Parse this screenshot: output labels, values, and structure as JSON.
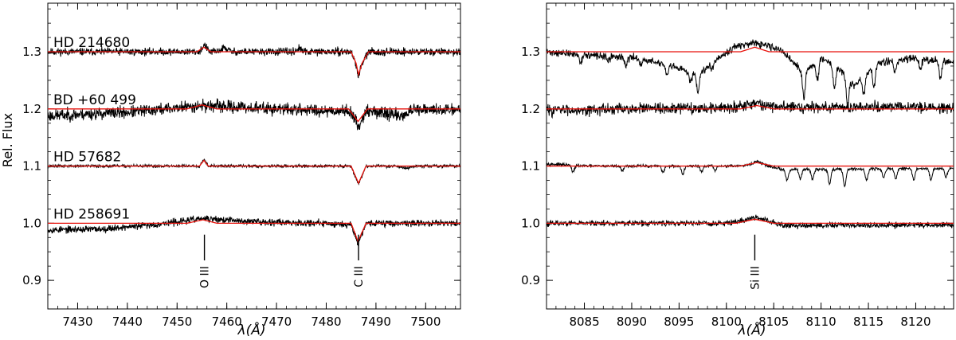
{
  "figure": {
    "ylabel": "Rel. Flux",
    "xlabel": "λ(Å)"
  },
  "chart_data": [
    {
      "type": "line",
      "panel": "left",
      "xlabel": "λ(Å)",
      "ylabel": "Rel. Flux",
      "xlim": [
        7424,
        7507
      ],
      "ylim": [
        0.85,
        1.385
      ],
      "xticks": [
        7430,
        7440,
        7450,
        7460,
        7470,
        7480,
        7490,
        7500
      ],
      "yticks": [
        0.9,
        1.0,
        1.1,
        1.2,
        1.3
      ],
      "grid": false,
      "stars": [
        {
          "label": "HD 214680",
          "offset": 0.3,
          "noise": 0.0045,
          "seed": 11,
          "observed": [
            [
              7424,
              0.0
            ],
            [
              7454.5,
              0.0
            ],
            [
              7455.5,
              0.012
            ],
            [
              7456.5,
              0.0
            ],
            [
              7458,
              0.0
            ],
            [
              7459.5,
              0.007
            ],
            [
              7461,
              0.0
            ],
            [
              7473.5,
              0.0
            ],
            [
              7474.5,
              0.006
            ],
            [
              7475.5,
              0.0
            ],
            [
              7485,
              0.0
            ],
            [
              7486,
              -0.022
            ],
            [
              7486.5,
              -0.045
            ],
            [
              7487,
              -0.025
            ],
            [
              7488.5,
              0.0
            ],
            [
              7507,
              0.0
            ]
          ],
          "model": [
            [
              7424,
              0.0
            ],
            [
              7454,
              0.0
            ],
            [
              7455.4,
              0.008
            ],
            [
              7456.8,
              0.0
            ],
            [
              7485,
              0.0
            ],
            [
              7486,
              -0.02
            ],
            [
              7486.5,
              -0.04
            ],
            [
              7487.2,
              -0.02
            ],
            [
              7488.5,
              0.0
            ],
            [
              7507,
              0.0
            ]
          ]
        },
        {
          "label": "BD +60 499",
          "offset": 0.2,
          "noise": 0.0075,
          "seed": 23,
          "observed": [
            [
              7424,
              -0.012
            ],
            [
              7440,
              -0.006
            ],
            [
              7455,
              0.006
            ],
            [
              7470,
              0.0
            ],
            [
              7485,
              -0.004
            ],
            [
              7486.4,
              -0.032
            ],
            [
              7488,
              -0.003
            ],
            [
              7495.5,
              -0.012
            ],
            [
              7497,
              -0.003
            ],
            [
              7507,
              0.0
            ]
          ],
          "model": [
            [
              7424,
              0.0
            ],
            [
              7452,
              0.0
            ],
            [
              7455,
              0.007
            ],
            [
              7458,
              0.0
            ],
            [
              7484.5,
              0.0
            ],
            [
              7486.4,
              -0.022
            ],
            [
              7488.3,
              0.0
            ],
            [
              7507,
              0.0
            ]
          ]
        },
        {
          "label": "HD 57682",
          "offset": 0.1,
          "noise": 0.0018,
          "seed": 37,
          "observed": [
            [
              7424,
              0.0
            ],
            [
              7454.5,
              0.0
            ],
            [
              7455.4,
              0.012
            ],
            [
              7456.3,
              0.0
            ],
            [
              7485,
              0.0
            ],
            [
              7486.5,
              -0.032
            ],
            [
              7488,
              0.0
            ],
            [
              7494,
              0.0
            ],
            [
              7496,
              -0.004
            ],
            [
              7498,
              0.0
            ],
            [
              7507,
              0.0
            ]
          ],
          "model": [
            [
              7424,
              0.0
            ],
            [
              7454.5,
              0.0
            ],
            [
              7455.4,
              0.01
            ],
            [
              7456.3,
              0.0
            ],
            [
              7485,
              0.0
            ],
            [
              7486.5,
              -0.03
            ],
            [
              7488,
              0.0
            ],
            [
              7507,
              0.0
            ]
          ]
        },
        {
          "label": "HD 258691",
          "offset": 0.0,
          "noise": 0.0042,
          "seed": 53,
          "observed": [
            [
              7424,
              -0.012
            ],
            [
              7435,
              -0.01
            ],
            [
              7445,
              -0.003
            ],
            [
              7455,
              0.008
            ],
            [
              7465,
              0.003
            ],
            [
              7475,
              0.001
            ],
            [
              7485,
              -0.002
            ],
            [
              7486.4,
              -0.035
            ],
            [
              7488,
              0.0
            ],
            [
              7507,
              0.0
            ]
          ],
          "model": [
            [
              7424,
              0.0
            ],
            [
              7452,
              0.0
            ],
            [
              7455.2,
              0.006
            ],
            [
              7458,
              0.0
            ],
            [
              7485,
              0.0
            ],
            [
              7486.4,
              -0.032
            ],
            [
              7488,
              0.0
            ],
            [
              7507,
              0.0
            ]
          ]
        }
      ],
      "line_markers": [
        {
          "label": "O III",
          "x": 7455.5
        },
        {
          "label": "C III",
          "x": 7486.5
        }
      ]
    },
    {
      "type": "line",
      "panel": "right",
      "xlabel": "λ(Å)",
      "ylabel": "",
      "xlim": [
        8081,
        8124
      ],
      "ylim": [
        0.85,
        1.385
      ],
      "xticks": [
        8085,
        8090,
        8095,
        8100,
        8105,
        8110,
        8115,
        8120
      ],
      "yticks": [
        0.9,
        1.0,
        1.1,
        1.2,
        1.3
      ],
      "grid": false,
      "stars": [
        {
          "offset": 0.3,
          "noise": 0.0045,
          "seed": 71,
          "observed": [
            [
              8081,
              0.0
            ],
            [
              8085,
              -0.006
            ],
            [
              8090,
              -0.01
            ],
            [
              8093,
              -0.02
            ],
            [
              8097,
              -0.04
            ],
            [
              8099,
              -0.012
            ],
            [
              8101,
              0.01
            ],
            [
              8103,
              0.014
            ],
            [
              8104.5,
              0.01
            ],
            [
              8106,
              0.0
            ],
            [
              8108,
              -0.035
            ],
            [
              8110,
              -0.012
            ],
            [
              8112,
              -0.03
            ],
            [
              8113.5,
              -0.06
            ],
            [
              8116,
              -0.02
            ],
            [
              8120,
              -0.01
            ],
            [
              8124,
              -0.02
            ]
          ],
          "absorptions": [
            [
              8084.6,
              0.012
            ],
            [
              8087.5,
              0.01
            ],
            [
              8089.4,
              0.016
            ],
            [
              8091,
              0.008
            ],
            [
              8093.7,
              0.02
            ],
            [
              8096.2,
              0.015
            ],
            [
              8097,
              0.03
            ],
            [
              8098.5,
              0.01
            ],
            [
              8108.2,
              0.05
            ],
            [
              8109.6,
              0.035
            ],
            [
              8111.4,
              0.04
            ],
            [
              8112.8,
              0.05
            ],
            [
              8114.5,
              0.03
            ],
            [
              8115.6,
              0.035
            ],
            [
              8117.8,
              0.02
            ],
            [
              8120.5,
              0.02
            ],
            [
              8122.6,
              0.03
            ]
          ],
          "model": [
            [
              8081,
              0.0
            ],
            [
              8101.5,
              0.0
            ],
            [
              8103,
              0.008
            ],
            [
              8104.5,
              0.0
            ],
            [
              8124,
              0.0
            ]
          ]
        },
        {
          "offset": 0.2,
          "noise": 0.007,
          "seed": 83,
          "observed": [
            [
              8081,
              -0.002
            ],
            [
              8090,
              0.0
            ],
            [
              8100,
              0.002
            ],
            [
              8103,
              0.01
            ],
            [
              8105,
              0.004
            ],
            [
              8110,
              0.003
            ],
            [
              8115,
              0.004
            ],
            [
              8124,
              0.002
            ]
          ],
          "absorptions": [],
          "model": [
            [
              8081,
              0.0
            ],
            [
              8101.5,
              0.0
            ],
            [
              8103.2,
              0.006
            ],
            [
              8105,
              0.0
            ],
            [
              8124,
              0.0
            ]
          ]
        },
        {
          "offset": 0.1,
          "noise": 0.0018,
          "seed": 97,
          "observed": [
            [
              8081,
              0.004
            ],
            [
              8085,
              0.0
            ],
            [
              8100,
              0.0
            ],
            [
              8102,
              0.0
            ],
            [
              8103.2,
              0.008
            ],
            [
              8104.5,
              0.0
            ],
            [
              8106,
              -0.006
            ],
            [
              8124,
              -0.004
            ]
          ],
          "absorptions": [
            [
              8083.8,
              0.012
            ],
            [
              8089,
              0.008
            ],
            [
              8093.3,
              0.012
            ],
            [
              8095.4,
              0.015
            ],
            [
              8097.4,
              0.01
            ],
            [
              8098.8,
              0.008
            ],
            [
              8106.4,
              0.02
            ],
            [
              8107.8,
              0.016
            ],
            [
              8109.1,
              0.018
            ],
            [
              8110.9,
              0.026
            ],
            [
              8112.5,
              0.03
            ],
            [
              8114.8,
              0.02
            ],
            [
              8116.6,
              0.015
            ],
            [
              8117.9,
              0.018
            ],
            [
              8119.8,
              0.02
            ],
            [
              8121.6,
              0.02
            ],
            [
              8123.2,
              0.016
            ]
          ],
          "model": [
            [
              8081,
              0.0
            ],
            [
              8101.5,
              0.0
            ],
            [
              8103.2,
              0.006
            ],
            [
              8105,
              0.0
            ],
            [
              8124,
              0.0
            ]
          ]
        },
        {
          "offset": 0.0,
          "noise": 0.0035,
          "seed": 113,
          "observed": [
            [
              8081,
              0.0
            ],
            [
              8100,
              0.0
            ],
            [
              8101.5,
              0.004
            ],
            [
              8103,
              0.01
            ],
            [
              8104.5,
              0.004
            ],
            [
              8106,
              -0.004
            ],
            [
              8124,
              -0.003
            ]
          ],
          "absorptions": [],
          "model": [
            [
              8081,
              0.0
            ],
            [
              8101,
              0.0
            ],
            [
              8103,
              0.007
            ],
            [
              8105,
              0.0
            ],
            [
              8124,
              0.0
            ]
          ]
        }
      ],
      "line_markers": [
        {
          "label": "Si III",
          "x": 8103
        }
      ]
    }
  ]
}
